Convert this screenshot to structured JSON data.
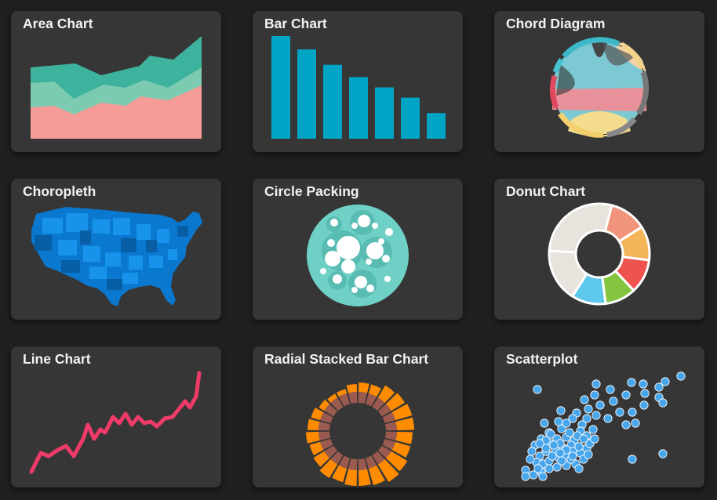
{
  "gallery": {
    "cards": [
      {
        "title": "Area Chart",
        "icon": "area-chart-icon"
      },
      {
        "title": "Bar Chart",
        "icon": "bar-chart-icon"
      },
      {
        "title": "Chord Diagram",
        "icon": "chord-diagram-icon"
      },
      {
        "title": "Choropleth",
        "icon": "choropleth-map-icon"
      },
      {
        "title": "Circle Packing",
        "icon": "circle-packing-icon"
      },
      {
        "title": "Donut Chart",
        "icon": "donut-chart-icon"
      },
      {
        "title": "Line Chart",
        "icon": "line-chart-icon"
      },
      {
        "title": "Radial Stacked Bar Chart",
        "icon": "radial-stacked-bar-chart-icon"
      },
      {
        "title": "Scatterplot",
        "icon": "scatterplot-icon"
      }
    ]
  },
  "colors": {
    "background": "#202020",
    "card": "#363636",
    "title_text": "#f2f2f2",
    "teal_dark": "#3db39e",
    "teal_light": "#7ccbb1",
    "salmon": "#f59c99",
    "bar_blue": "#00a5c6",
    "line_pink": "#f03b69",
    "scatter_blue": "#47a6ec",
    "choropleth_blue": "#1a8fe8",
    "packing_teal": "#6fd1c6",
    "radial_orange": "#ff8c00",
    "radial_brown": "#9a5a4f"
  },
  "bar_thumbnail": {
    "values": [
      100,
      87,
      72,
      60,
      50,
      40,
      25
    ]
  },
  "donut_thumbnail": {
    "values": [
      28,
      12,
      11,
      11,
      10,
      11,
      17
    ],
    "colors": [
      "#e8e3dc",
      "#f0957c",
      "#f3b45a",
      "#ef5350",
      "#84c441",
      "#5ec7ec",
      "#e8e3dc"
    ]
  }
}
